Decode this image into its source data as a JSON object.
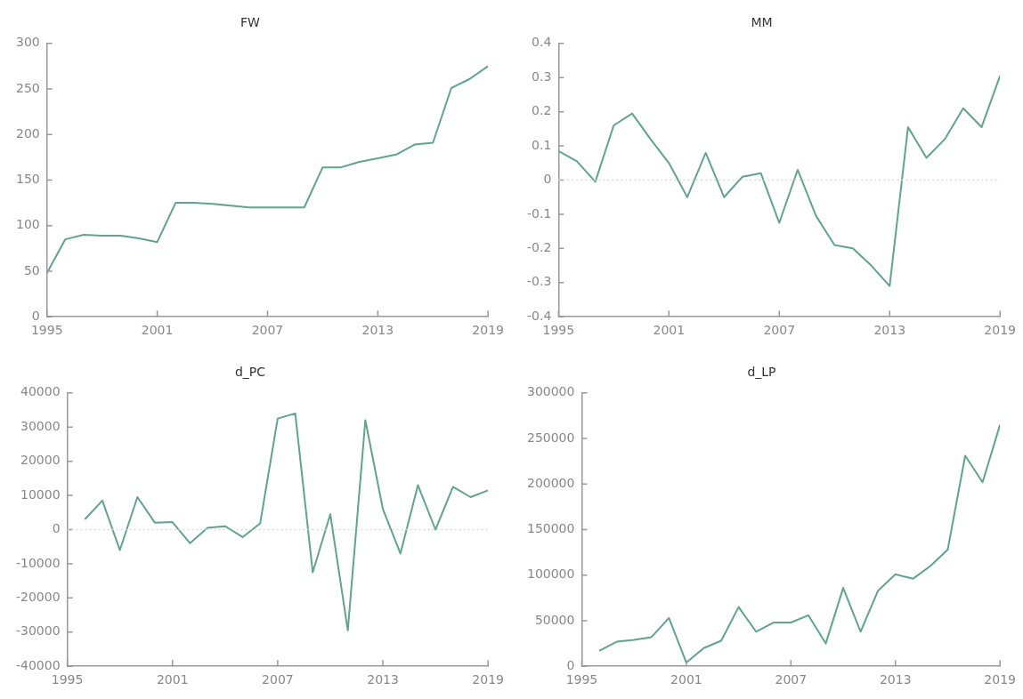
{
  "chart_data": [
    {
      "type": "line",
      "title": "FW",
      "x": [
        1995,
        1996,
        1997,
        1998,
        1999,
        2000,
        2001,
        2002,
        2003,
        2004,
        2005,
        2006,
        2007,
        2008,
        2009,
        2010,
        2011,
        2012,
        2013,
        2014,
        2015,
        2016,
        2017,
        2018,
        2019
      ],
      "series": [
        {
          "color": "#5fa58a",
          "values": [
            48,
            85,
            90,
            89,
            89,
            86,
            82,
            125,
            125,
            124,
            122,
            120,
            120,
            120,
            120,
            164,
            164,
            170,
            174,
            178,
            189,
            191,
            251,
            261,
            275
          ]
        }
      ],
      "xlim": [
        1995,
        2019
      ],
      "xticks": [
        1995,
        2001,
        2007,
        2013,
        2019
      ],
      "ylim": [
        0,
        300
      ],
      "yticks": [
        0,
        50,
        100,
        150,
        200,
        250,
        300
      ],
      "grid": false,
      "legend": false,
      "marker": "none"
    },
    {
      "type": "line",
      "title": "MM",
      "x": [
        1995,
        1996,
        1997,
        1998,
        1999,
        2000,
        2001,
        2002,
        2003,
        2004,
        2005,
        2006,
        2007,
        2008,
        2009,
        2010,
        2011,
        2012,
        2013,
        2014,
        2015,
        2016,
        2017,
        2018,
        2019
      ],
      "series": [
        {
          "color": "#5fa58a",
          "values": [
            0.085,
            0.055,
            -0.005,
            0.16,
            0.195,
            0.12,
            0.05,
            -0.05,
            0.08,
            -0.05,
            0.01,
            0.02,
            -0.125,
            0.03,
            -0.105,
            -0.19,
            -0.2,
            -0.25,
            -0.31,
            0.155,
            0.065,
            0.12,
            0.21,
            0.155,
            0.305
          ]
        }
      ],
      "xlim": [
        1995,
        2019
      ],
      "xticks": [
        1995,
        2001,
        2007,
        2013,
        2019
      ],
      "ylim": [
        -0.4,
        0.4
      ],
      "yticks": [
        -0.4,
        -0.3,
        -0.2,
        -0.1,
        0,
        0.1,
        0.2,
        0.3,
        0.4
      ],
      "grid": false,
      "legend": false,
      "marker": "none",
      "ref_lines": [
        {
          "axis": "y",
          "value": 0,
          "color": "#d8d8d8",
          "line_style": "dotted"
        }
      ]
    },
    {
      "type": "line",
      "title": "d_PC",
      "x": [
        1996,
        1997,
        1998,
        1999,
        2000,
        2001,
        2002,
        2003,
        2004,
        2005,
        2006,
        2007,
        2008,
        2009,
        2010,
        2011,
        2012,
        2013,
        2014,
        2015,
        2016,
        2017,
        2018,
        2019
      ],
      "series": [
        {
          "color": "#5fa58a",
          "values": [
            3000,
            8500,
            -6000,
            9500,
            2000,
            2200,
            -4000,
            500,
            1000,
            -2200,
            1800,
            32500,
            34000,
            -12500,
            4500,
            -29500,
            32000,
            6000,
            -7000,
            13000,
            0,
            12500,
            9500,
            11500
          ]
        }
      ],
      "xlim": [
        1995,
        2019
      ],
      "xticks": [
        1995,
        2001,
        2007,
        2013,
        2019
      ],
      "ylim": [
        -40000,
        40000
      ],
      "yticks": [
        -40000,
        -30000,
        -20000,
        -10000,
        0,
        10000,
        20000,
        30000,
        40000
      ],
      "grid": false,
      "legend": false,
      "marker": "none",
      "ref_lines": [
        {
          "axis": "y",
          "value": 0,
          "color": "#d8d8d8",
          "line_style": "dotted"
        }
      ]
    },
    {
      "type": "line",
      "title": "d_LP",
      "x": [
        1996,
        1997,
        1998,
        1999,
        2000,
        2001,
        2002,
        2003,
        2004,
        2005,
        2006,
        2007,
        2008,
        2009,
        2010,
        2011,
        2012,
        2013,
        2014,
        2015,
        2016,
        2017,
        2018,
        2019
      ],
      "series": [
        {
          "color": "#5fa58a",
          "values": [
            17000,
            27000,
            29000,
            32000,
            53000,
            4000,
            20000,
            28000,
            65000,
            38000,
            48000,
            48000,
            56000,
            25000,
            86000,
            38000,
            83000,
            101000,
            96000,
            110000,
            128000,
            231000,
            202000,
            265000
          ]
        }
      ],
      "xlim": [
        1995,
        2019
      ],
      "xticks": [
        1995,
        2001,
        2007,
        2013,
        2019
      ],
      "ylim": [
        0,
        300000
      ],
      "yticks": [
        0,
        50000,
        100000,
        150000,
        200000,
        250000,
        300000
      ],
      "grid": false,
      "legend": false,
      "marker": "none"
    }
  ]
}
